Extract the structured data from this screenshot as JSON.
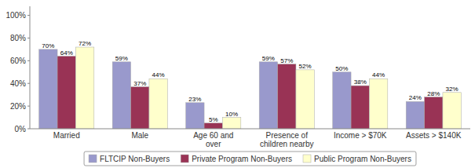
{
  "chart_data": {
    "type": "bar",
    "categories": [
      "Married",
      "Male",
      "Age 60 and\nover",
      "Presence of\nchildren nearby",
      "Income > $70K",
      "Assets > $140K"
    ],
    "series": [
      {
        "name": "FLTCIP Non-Buyers",
        "color": "#9999cc",
        "values": [
          70,
          59,
          23,
          59,
          50,
          24
        ],
        "value_labels": [
          "70%",
          "59%",
          "23%",
          "59%",
          "50%",
          "24%"
        ]
      },
      {
        "name": "Private Program Non-Buyers",
        "color": "#993355",
        "values": [
          64,
          37,
          5,
          57,
          38,
          28
        ],
        "value_labels": [
          "64%",
          "37%",
          "5%",
          "57%",
          "38%",
          "28%"
        ]
      },
      {
        "name": "Public Program Non-Buyers",
        "color": "#ffffcc",
        "values": [
          72,
          44,
          10,
          52,
          44,
          32
        ],
        "value_labels": [
          "72%",
          "44%",
          "10%",
          "52%",
          "44%",
          "32%"
        ]
      }
    ],
    "ylim": [
      0,
      108
    ],
    "yticks": [
      {
        "value": 0,
        "label": "0%"
      },
      {
        "value": 20,
        "label": "20%"
      },
      {
        "value": 40,
        "label": "40%"
      },
      {
        "value": 60,
        "label": "60%"
      },
      {
        "value": 80,
        "label": "80%"
      },
      {
        "value": 100,
        "label": "100%"
      }
    ],
    "grid": false,
    "data_labels": true,
    "legend": "bottom"
  }
}
